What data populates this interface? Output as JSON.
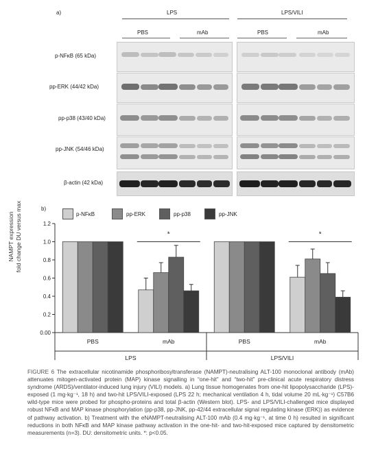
{
  "panel_a": {
    "label": "a)",
    "groups": [
      "LPS",
      "LPS/VILI"
    ],
    "subgroups": [
      "PBS",
      "mAb",
      "PBS",
      "mAb"
    ],
    "rows": [
      {
        "label": "p-NFκB (65 kDa)"
      },
      {
        "label": "pp-ERK (44/42 kDa)"
      },
      {
        "label": "pp-p38 (43/40 kDa)"
      },
      {
        "label": "pp-JNK (54/46 kDa)"
      },
      {
        "label": "β-actin (42 kDa)"
      }
    ]
  },
  "panel_b": {
    "label": "b)",
    "legend": [
      "p-NFκB",
      "pp-ERK",
      "pp-p38",
      "pp-JNK"
    ],
    "colors": [
      "#cfcfcf",
      "#8a8a8a",
      "#5f5f5f",
      "#3a3a3a"
    ],
    "ylabel_line1": "NAMPT expression",
    "ylabel_line2": "fold change DU versus max",
    "star": "*"
  },
  "chart_data": {
    "type": "bar",
    "categories": [
      "PBS",
      "mAb",
      "PBS",
      "mAb"
    ],
    "groups": [
      "LPS",
      "LPS",
      "LPS/VILI",
      "LPS/VILI"
    ],
    "series": [
      {
        "name": "p-NFκB",
        "values": [
          1.0,
          0.47,
          1.0,
          0.61
        ],
        "errors": [
          0,
          0.13,
          0,
          0.13
        ]
      },
      {
        "name": "pp-ERK",
        "values": [
          1.0,
          0.66,
          1.0,
          0.81
        ],
        "errors": [
          0,
          0.11,
          0,
          0.11
        ]
      },
      {
        "name": "pp-p38",
        "values": [
          1.0,
          0.83,
          1.0,
          0.65
        ],
        "errors": [
          0,
          0.13,
          0,
          0.12
        ]
      },
      {
        "name": "pp-JNK",
        "values": [
          1.0,
          0.46,
          1.0,
          0.39
        ],
        "errors": [
          0,
          0.07,
          0,
          0.07
        ]
      }
    ],
    "yticks": [
      "0.00",
      "0.2",
      "0.4",
      "0.6",
      "0.8",
      "1.0",
      "1.2"
    ],
    "ylim": [
      0,
      1.2
    ],
    "group_labels": [
      "LPS",
      "LPS/VILI"
    ]
  },
  "caption": {
    "title": "FIGURE 6",
    "text": "The extracellular nicotinamide phosphoribosyltransferase (NAMPT)-neutralising ALT-100 monoclonal antibody (mAb) attenuates mitogen-activated protein (MAP) kinase signalling in “one-hit” and “two-hit” pre-clinical acute respiratory distress syndrome (ARDS)/ventilator-induced lung injury (VILI) models. a) Lung tissue homogenates from one-hit lipopolysaccharide (LPS)-exposed (1 mg·kg⁻¹, 18 h) and two-hit LPS/VILI-exposed (LPS 22 h; mechanical ventilation 4 h, tidal volume 20 mL·kg⁻¹) C57B6 wild-type mice were probed for phospho-proteins and total β-actin (Western blot). LPS- and LPS/VILI-challenged mice displayed robust NFκB and MAP kinase phosphorylation (pp-p38, pp-JNK, pp-42/44 extracellular signal regulating kinase (ERK)) as evidence of pathway activation. b) Treatment with the eNAMPT-neutralising ALT-100 mAb (0.4 mg·kg⁻¹, at time 0 h) resulted in significant reductions in both NFκB and MAP kinase pathway activation in the one-hit- and two-hit-exposed mice captured by densitometric measurements (n=3). DU: densitometric units. *: p<0.05."
  }
}
